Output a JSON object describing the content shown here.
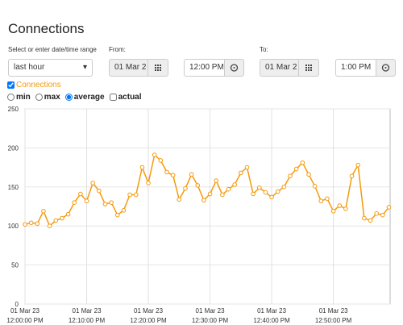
{
  "title": "Connections",
  "range": {
    "label": "Select or enter date/time range",
    "value": "last hour"
  },
  "from": {
    "label": "From:",
    "date": "01 Mar 2",
    "time": "12:00 PM"
  },
  "to": {
    "label": "To:",
    "date": "01 Mar 2",
    "time": "1:00 PM"
  },
  "modes": [
    {
      "label": "min",
      "checked": false
    },
    {
      "label": "max",
      "checked": false
    },
    {
      "label": "average",
      "checked": true
    },
    {
      "label": "actual",
      "checked": false
    }
  ],
  "chart_data": {
    "type": "line",
    "x": [
      0,
      1,
      2,
      3,
      4,
      5,
      6,
      7,
      8,
      9,
      10,
      11,
      12,
      13,
      14,
      15,
      16,
      17,
      18,
      19,
      20,
      21,
      22,
      23,
      24,
      25,
      26,
      27,
      28,
      29,
      30,
      31,
      32,
      33,
      34,
      35,
      36,
      37,
      38,
      39,
      40,
      41,
      42,
      43,
      44,
      45,
      46,
      47,
      48,
      49,
      50,
      51,
      52,
      53,
      54,
      55,
      56,
      57,
      58,
      59
    ],
    "series": [
      {
        "name": "Connections",
        "color": "#f59a0c",
        "checked": true,
        "values": [
          102,
          104,
          103,
          119,
          100,
          107,
          110,
          115,
          130,
          141,
          132,
          155,
          145,
          128,
          130,
          114,
          120,
          140,
          140,
          175,
          155,
          191,
          184,
          169,
          165,
          134,
          148,
          166,
          152,
          133,
          141,
          158,
          140,
          147,
          153,
          168,
          175,
          141,
          149,
          143,
          137,
          144,
          150,
          164,
          173,
          181,
          166,
          151,
          132,
          135,
          119,
          126,
          122,
          164,
          178,
          110,
          107,
          116,
          114,
          124
        ]
      }
    ],
    "xlim": [
      0,
      59.2
    ],
    "xticks": [
      {
        "value": 0,
        "label": [
          "01 Mar 23",
          "12:00:00 PM"
        ]
      },
      {
        "value": 10,
        "label": [
          "01 Mar 23",
          "12:10:00 PM"
        ]
      },
      {
        "value": 20,
        "label": [
          "01 Mar 23",
          "12:20:00 PM"
        ]
      },
      {
        "value": 30,
        "label": [
          "01 Mar 23",
          "12:30:00 PM"
        ]
      },
      {
        "value": 40,
        "label": [
          "01 Mar 23",
          "12:40:00 PM"
        ]
      },
      {
        "value": 50,
        "label": [
          "01 Mar 23",
          "12:50:00 PM"
        ]
      }
    ],
    "ylim": [
      0,
      250
    ],
    "yticks": [
      0,
      50,
      100,
      150,
      200,
      250
    ],
    "grid": true
  }
}
